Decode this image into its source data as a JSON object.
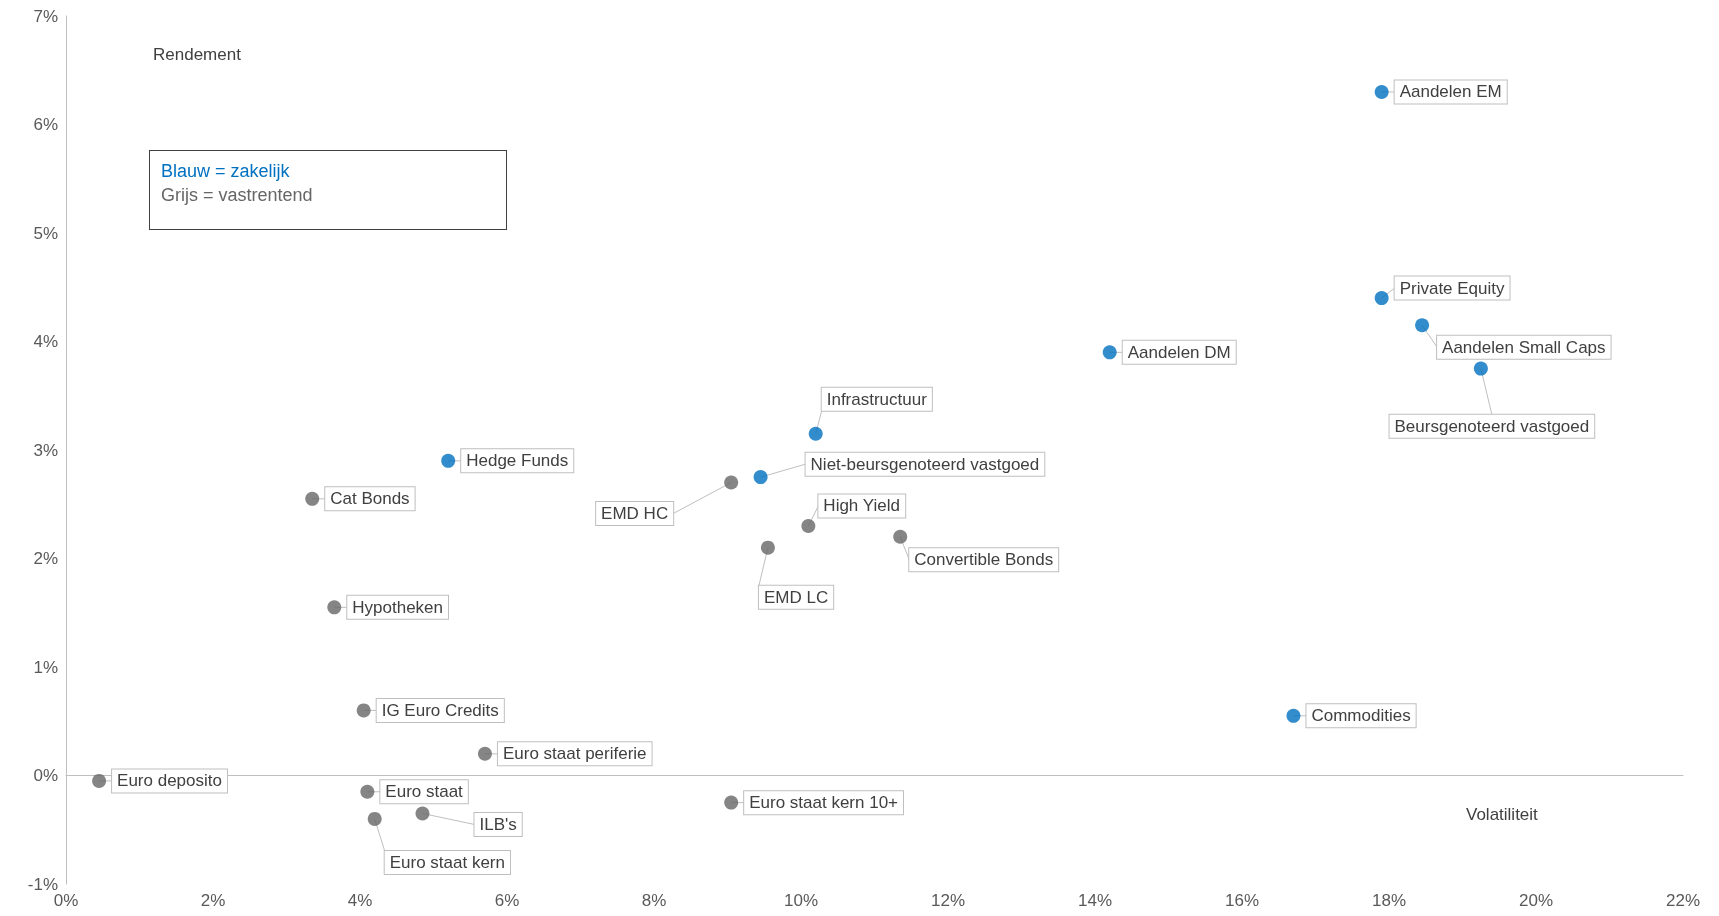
{
  "chart_data": {
    "type": "scatter",
    "xlabel": "Volatiliteit",
    "ylabel": "Rendement",
    "marker": "circle",
    "xlim": [
      0,
      22
    ],
    "ylim": [
      -1,
      7
    ],
    "xticks": [
      {
        "value": 0,
        "label": "0%"
      },
      {
        "value": 2,
        "label": "2%"
      },
      {
        "value": 4,
        "label": "4%"
      },
      {
        "value": 6,
        "label": "6%"
      },
      {
        "value": 8,
        "label": "8%"
      },
      {
        "value": 10,
        "label": "10%"
      },
      {
        "value": 12,
        "label": "12%"
      },
      {
        "value": 14,
        "label": "14%"
      },
      {
        "value": 16,
        "label": "16%"
      },
      {
        "value": 18,
        "label": "18%"
      },
      {
        "value": 20,
        "label": "20%"
      },
      {
        "value": 22,
        "label": "22%"
      }
    ],
    "yticks": [
      {
        "value": -1,
        "label": "-1%"
      },
      {
        "value": 0,
        "label": "0%"
      },
      {
        "value": 1,
        "label": "1%"
      },
      {
        "value": 2,
        "label": "2%"
      },
      {
        "value": 3,
        "label": "3%"
      },
      {
        "value": 4,
        "label": "4%"
      },
      {
        "value": 5,
        "label": "5%"
      },
      {
        "value": 6,
        "label": "6%"
      },
      {
        "value": 7,
        "label": "7%"
      }
    ],
    "series": [
      {
        "color": "#0070c0",
        "x": [
          17.9,
          17.9,
          18.45,
          19.25,
          14.2,
          10.2,
          9.45,
          5.2,
          16.7
        ],
        "values": [
          6.3,
          4.4,
          4.15,
          3.75,
          3.9,
          3.15,
          2.75,
          2.9,
          0.55
        ]
      },
      {
        "color": "#666666",
        "x": [
          3.35,
          9.05,
          10.1,
          11.35,
          9.55,
          3.65,
          4.05,
          5.7,
          0.45,
          4.1,
          9.05,
          4.85,
          4.2
        ],
        "values": [
          2.55,
          2.7,
          2.3,
          2.2,
          2.1,
          1.55,
          0.6,
          0.2,
          -0.05,
          -0.15,
          -0.25,
          -0.35,
          -0.4
        ]
      }
    ],
    "annotations": [
      "Blauw = zakelijk",
      "Grijs = vastrentend",
      {
        "text": "Aandelen EM",
        "x": 17.9,
        "y": 6.3
      },
      {
        "text": "Private Equity",
        "x": 17.9,
        "y": 4.4
      },
      {
        "text": "Aandelen Small Caps",
        "x": 18.45,
        "y": 4.15
      },
      {
        "text": "Beursgenoteerd vastgoed",
        "x": 19.25,
        "y": 3.75
      },
      {
        "text": "Aandelen DM",
        "x": 14.2,
        "y": 3.9
      },
      {
        "text": "Infrastructuur",
        "x": 10.2,
        "y": 3.15
      },
      {
        "text": "Niet-beursgenoteerd vastgoed",
        "x": 9.45,
        "y": 2.75
      },
      {
        "text": "Hedge Funds",
        "x": 5.2,
        "y": 2.9
      },
      {
        "text": "Commodities",
        "x": 16.7,
        "y": 0.55
      },
      {
        "text": "Cat Bonds",
        "x": 3.35,
        "y": 2.55
      },
      {
        "text": "EMD HC",
        "x": 9.05,
        "y": 2.7
      },
      {
        "text": "High Yield",
        "x": 10.1,
        "y": 2.3
      },
      {
        "text": "Convertible Bonds",
        "x": 11.35,
        "y": 2.2
      },
      {
        "text": "EMD LC",
        "x": 9.55,
        "y": 2.1
      },
      {
        "text": "Hypotheken",
        "x": 3.65,
        "y": 1.55
      },
      {
        "text": "IG Euro Credits",
        "x": 4.05,
        "y": 0.6
      },
      {
        "text": "Euro staat periferie",
        "x": 5.7,
        "y": 0.2
      },
      {
        "text": "Euro deposito",
        "x": 0.45,
        "y": -0.05
      },
      {
        "text": "Euro staat",
        "x": 4.1,
        "y": -0.15
      },
      {
        "text": "Euro staat kern 10+",
        "x": 9.05,
        "y": -0.25
      },
      {
        "text": "ILB's",
        "x": 4.85,
        "y": -0.35
      },
      {
        "text": "Euro staat kern",
        "x": 4.2,
        "y": -0.4
      }
    ]
  }
}
